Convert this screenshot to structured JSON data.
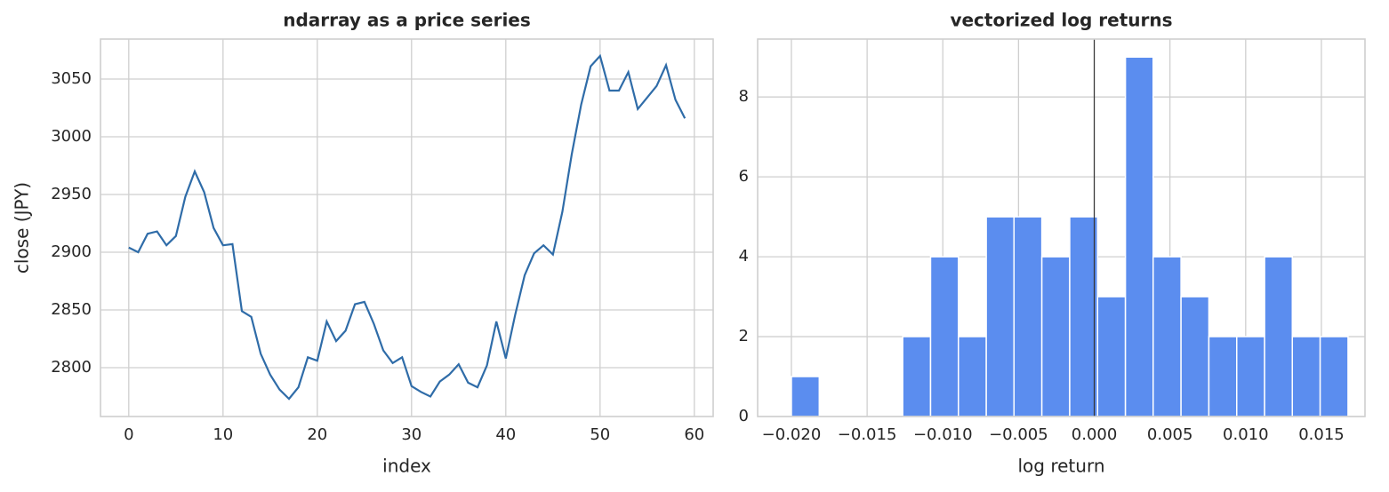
{
  "chart_data": [
    {
      "type": "line",
      "title": "ndarray as a price series",
      "xlabel": "index",
      "ylabel": "close (JPY)",
      "color": "#2f6ca8",
      "grid": true,
      "x": [
        0,
        1,
        2,
        3,
        4,
        5,
        6,
        7,
        8,
        9,
        10,
        11,
        12,
        13,
        14,
        15,
        16,
        17,
        18,
        19,
        20,
        21,
        22,
        23,
        24,
        25,
        26,
        27,
        28,
        29,
        30,
        31,
        32,
        33,
        34,
        35,
        36,
        37,
        38,
        39,
        40,
        41,
        42,
        43,
        44,
        45,
        46,
        47,
        48,
        49,
        50,
        51,
        52,
        53,
        54,
        55,
        56,
        57,
        58,
        59
      ],
      "values": [
        2904,
        2900,
        2916,
        2918,
        2906,
        2914,
        2948,
        2970,
        2952,
        2921,
        2906,
        2907,
        2849,
        2844,
        2812,
        2794,
        2781,
        2773,
        2783,
        2809,
        2806,
        2840,
        2823,
        2832,
        2855,
        2857,
        2838,
        2815,
        2804,
        2809,
        2784,
        2779,
        2775,
        2788,
        2794,
        2803,
        2787,
        2783,
        2802,
        2840,
        2808,
        2846,
        2880,
        2899,
        2906,
        2898,
        2935,
        2985,
        3028,
        3061,
        3070,
        3040,
        3040,
        3056,
        3024,
        3034,
        3044,
        3062,
        3032,
        3016
      ],
      "xlim": [
        -3,
        62
      ],
      "xticks": [
        0,
        10,
        20,
        30,
        40,
        50,
        60
      ],
      "ylim": [
        2757.7,
        3084.6
      ],
      "yticks": [
        2800,
        2850,
        2900,
        2950,
        3000,
        3050
      ]
    },
    {
      "type": "histogram",
      "title": "vectorized log returns",
      "xlabel": "log return",
      "color": "#5b8def",
      "grid": true,
      "vline": 0,
      "bins": [
        -0.02,
        -0.01816,
        -0.01632,
        -0.01449,
        -0.01265,
        -0.01081,
        -0.00897,
        -0.00713,
        -0.0053,
        -0.00346,
        -0.00162,
        0.00022,
        0.00206,
        0.00389,
        0.00573,
        0.00757,
        0.00941,
        0.01125,
        0.01308,
        0.01492,
        0.01676
      ],
      "counts": [
        1,
        0,
        0,
        0,
        2,
        4,
        2,
        5,
        5,
        4,
        5,
        3,
        9,
        4,
        3,
        2,
        2,
        4,
        2,
        2
      ],
      "xlim": [
        -0.02223,
        0.01788
      ],
      "xticks": [
        {
          "value": -0.02,
          "label": "−0.020"
        },
        {
          "value": -0.015,
          "label": "−0.015"
        },
        {
          "value": -0.01,
          "label": "−0.010"
        },
        {
          "value": -0.005,
          "label": "−0.005"
        },
        {
          "value": 0,
          "label": "0.000"
        },
        0.005,
        {
          "value": 0.01,
          "label": "0.010"
        },
        0.015
      ],
      "ylim": [
        0,
        9.45
      ],
      "yticks": [
        0,
        2,
        4,
        6,
        8
      ]
    }
  ]
}
